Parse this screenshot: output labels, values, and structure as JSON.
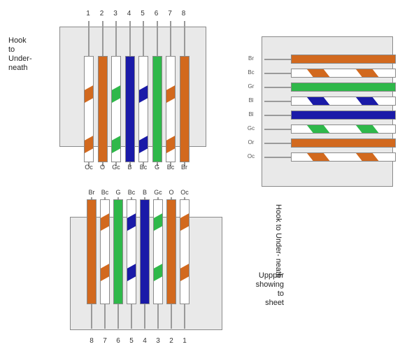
{
  "colors": {
    "orange": "#d2691e",
    "green": "#2fb84a",
    "blue": "#1a1aa8",
    "white": "#ffffff",
    "panel": "#e9e9e9"
  },
  "connectors": [
    {
      "id": "top-left",
      "orientation": "vertical",
      "pin_numbers": [
        "1",
        "2",
        "3",
        "4",
        "5",
        "6",
        "7",
        "8"
      ],
      "bottom_codes": [
        "Oc",
        "O",
        "Gc",
        "B",
        "Bc",
        "G",
        "Bc",
        "Br"
      ],
      "wires": [
        {
          "base": "white",
          "stripe": "orange"
        },
        {
          "base": "orange",
          "stripe": null
        },
        {
          "base": "white",
          "stripe": "green"
        },
        {
          "base": "blue",
          "stripe": null
        },
        {
          "base": "white",
          "stripe": "blue"
        },
        {
          "base": "green",
          "stripe": null
        },
        {
          "base": "white",
          "stripe": "orange"
        },
        {
          "base": "orange",
          "stripe": null
        }
      ],
      "label_lines": [
        "Hook",
        "to",
        "Under-",
        "neath"
      ]
    },
    {
      "id": "right",
      "orientation": "horizontal",
      "row_labels": [
        "Br",
        "Bc",
        "Gr",
        "Bl",
        "Bl",
        "Gc",
        "Or",
        "Oc"
      ],
      "wires": [
        {
          "base": "orange",
          "stripe": null
        },
        {
          "base": "white",
          "stripe": "orange"
        },
        {
          "base": "green",
          "stripe": null
        },
        {
          "base": "white",
          "stripe": "blue"
        },
        {
          "base": "blue",
          "stripe": null
        },
        {
          "base": "white",
          "stripe": "green"
        },
        {
          "base": "orange",
          "stripe": null
        },
        {
          "base": "white",
          "stripe": "orange"
        }
      ]
    },
    {
      "id": "bottom",
      "orientation": "vertical",
      "top_codes": [
        "Br",
        "Bc",
        "G",
        "Bc",
        "B",
        "Gc",
        "O",
        "Oc"
      ],
      "pin_numbers": [
        "8",
        "7",
        "6",
        "5",
        "4",
        "3",
        "2",
        "1"
      ],
      "wires": [
        {
          "base": "orange",
          "stripe": null
        },
        {
          "base": "white",
          "stripe": "orange"
        },
        {
          "base": "green",
          "stripe": null
        },
        {
          "base": "white",
          "stripe": "blue"
        },
        {
          "base": "blue",
          "stripe": null
        },
        {
          "base": "white",
          "stripe": "green"
        },
        {
          "base": "orange",
          "stripe": null
        },
        {
          "base": "white",
          "stripe": "orange"
        }
      ],
      "side_label_lines": [
        "Hook",
        "to",
        "Under-",
        "neath"
      ],
      "label_lines": [
        "Uppper",
        "showing",
        "to",
        "sheet"
      ]
    }
  ]
}
